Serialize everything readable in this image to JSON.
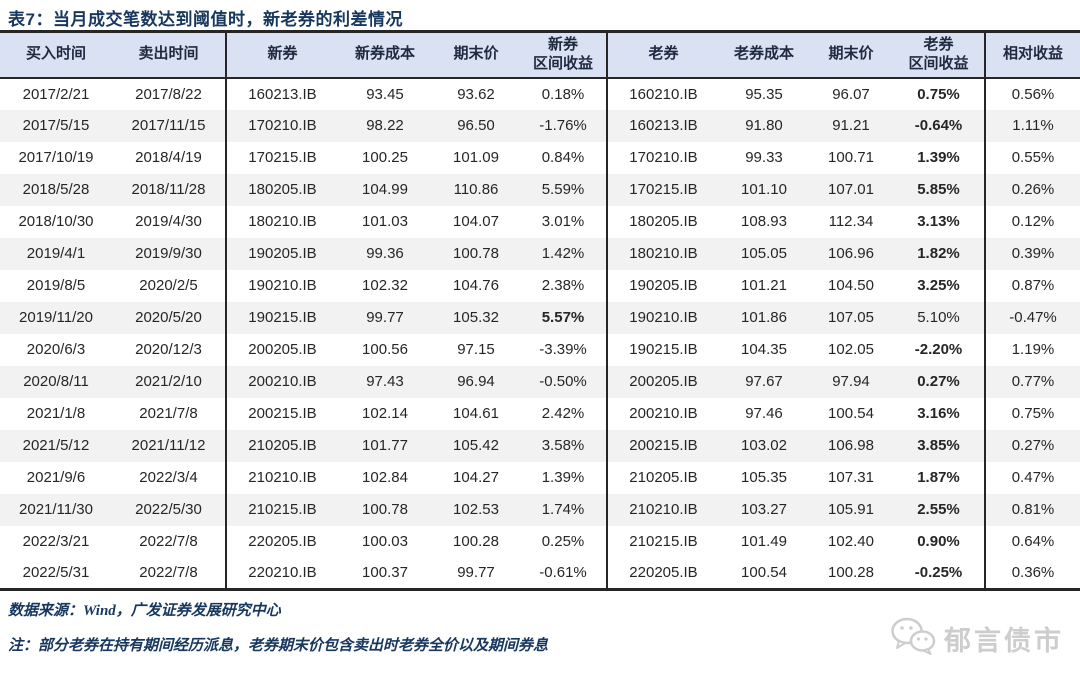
{
  "title": "表7：当月成交笔数达到阈值时，新老券的利差情况",
  "colors": {
    "title_navy": "#17375e",
    "header_bg": "#d9e1f2",
    "stripe_gray": "#f2f2f2",
    "border_dark": "#262626",
    "watermark_gray": "#cdcdcd"
  },
  "table": {
    "headers": [
      {
        "lines": [
          "买入时间"
        ]
      },
      {
        "lines": [
          "卖出时间"
        ]
      },
      {
        "lines": [
          "新券"
        ]
      },
      {
        "lines": [
          "新券成本"
        ]
      },
      {
        "lines": [
          "期末价"
        ]
      },
      {
        "lines": [
          "新券",
          "区间收益"
        ]
      },
      {
        "lines": [
          "老券"
        ]
      },
      {
        "lines": [
          "老券成本"
        ]
      },
      {
        "lines": [
          "期末价"
        ]
      },
      {
        "lines": [
          "老券",
          "区间收益"
        ]
      },
      {
        "lines": [
          "相对收益"
        ]
      }
    ],
    "rows": [
      {
        "buy": "2017/2/21",
        "sell": "2017/8/22",
        "new_bond": "160213.IB",
        "new_cost": "93.45",
        "new_end": "93.62",
        "new_ret": "0.18%",
        "new_bold": false,
        "old_bond": "160210.IB",
        "old_cost": "95.35",
        "old_end": "96.07",
        "old_ret": "0.75%",
        "old_bold": true,
        "rel": "0.56%"
      },
      {
        "buy": "2017/5/15",
        "sell": "2017/11/15",
        "new_bond": "170210.IB",
        "new_cost": "98.22",
        "new_end": "96.50",
        "new_ret": "-1.76%",
        "new_bold": false,
        "old_bond": "160213.IB",
        "old_cost": "91.80",
        "old_end": "91.21",
        "old_ret": "-0.64%",
        "old_bold": true,
        "rel": "1.11%"
      },
      {
        "buy": "2017/10/19",
        "sell": "2018/4/19",
        "new_bond": "170215.IB",
        "new_cost": "100.25",
        "new_end": "101.09",
        "new_ret": "0.84%",
        "new_bold": false,
        "old_bond": "170210.IB",
        "old_cost": "99.33",
        "old_end": "100.71",
        "old_ret": "1.39%",
        "old_bold": true,
        "rel": "0.55%"
      },
      {
        "buy": "2018/5/28",
        "sell": "2018/11/28",
        "new_bond": "180205.IB",
        "new_cost": "104.99",
        "new_end": "110.86",
        "new_ret": "5.59%",
        "new_bold": false,
        "old_bond": "170215.IB",
        "old_cost": "101.10",
        "old_end": "107.01",
        "old_ret": "5.85%",
        "old_bold": true,
        "rel": "0.26%"
      },
      {
        "buy": "2018/10/30",
        "sell": "2019/4/30",
        "new_bond": "180210.IB",
        "new_cost": "101.03",
        "new_end": "104.07",
        "new_ret": "3.01%",
        "new_bold": false,
        "old_bond": "180205.IB",
        "old_cost": "108.93",
        "old_end": "112.34",
        "old_ret": "3.13%",
        "old_bold": true,
        "rel": "0.12%"
      },
      {
        "buy": "2019/4/1",
        "sell": "2019/9/30",
        "new_bond": "190205.IB",
        "new_cost": "99.36",
        "new_end": "100.78",
        "new_ret": "1.42%",
        "new_bold": false,
        "old_bond": "180210.IB",
        "old_cost": "105.05",
        "old_end": "106.96",
        "old_ret": "1.82%",
        "old_bold": true,
        "rel": "0.39%"
      },
      {
        "buy": "2019/8/5",
        "sell": "2020/2/5",
        "new_bond": "190210.IB",
        "new_cost": "102.32",
        "new_end": "104.76",
        "new_ret": "2.38%",
        "new_bold": false,
        "old_bond": "190205.IB",
        "old_cost": "101.21",
        "old_end": "104.50",
        "old_ret": "3.25%",
        "old_bold": true,
        "rel": "0.87%"
      },
      {
        "buy": "2019/11/20",
        "sell": "2020/5/20",
        "new_bond": "190215.IB",
        "new_cost": "99.77",
        "new_end": "105.32",
        "new_ret": "5.57%",
        "new_bold": true,
        "old_bond": "190210.IB",
        "old_cost": "101.86",
        "old_end": "107.05",
        "old_ret": "5.10%",
        "old_bold": false,
        "rel": "-0.47%"
      },
      {
        "buy": "2020/6/3",
        "sell": "2020/12/3",
        "new_bond": "200205.IB",
        "new_cost": "100.56",
        "new_end": "97.15",
        "new_ret": "-3.39%",
        "new_bold": false,
        "old_bond": "190215.IB",
        "old_cost": "104.35",
        "old_end": "102.05",
        "old_ret": "-2.20%",
        "old_bold": true,
        "rel": "1.19%"
      },
      {
        "buy": "2020/8/11",
        "sell": "2021/2/10",
        "new_bond": "200210.IB",
        "new_cost": "97.43",
        "new_end": "96.94",
        "new_ret": "-0.50%",
        "new_bold": false,
        "old_bond": "200205.IB",
        "old_cost": "97.67",
        "old_end": "97.94",
        "old_ret": "0.27%",
        "old_bold": true,
        "rel": "0.77%"
      },
      {
        "buy": "2021/1/8",
        "sell": "2021/7/8",
        "new_bond": "200215.IB",
        "new_cost": "102.14",
        "new_end": "104.61",
        "new_ret": "2.42%",
        "new_bold": false,
        "old_bond": "200210.IB",
        "old_cost": "97.46",
        "old_end": "100.54",
        "old_ret": "3.16%",
        "old_bold": true,
        "rel": "0.75%"
      },
      {
        "buy": "2021/5/12",
        "sell": "2021/11/12",
        "new_bond": "210205.IB",
        "new_cost": "101.77",
        "new_end": "105.42",
        "new_ret": "3.58%",
        "new_bold": false,
        "old_bond": "200215.IB",
        "old_cost": "103.02",
        "old_end": "106.98",
        "old_ret": "3.85%",
        "old_bold": true,
        "rel": "0.27%"
      },
      {
        "buy": "2021/9/6",
        "sell": "2022/3/4",
        "new_bond": "210210.IB",
        "new_cost": "102.84",
        "new_end": "104.27",
        "new_ret": "1.39%",
        "new_bold": false,
        "old_bond": "210205.IB",
        "old_cost": "105.35",
        "old_end": "107.31",
        "old_ret": "1.87%",
        "old_bold": true,
        "rel": "0.47%"
      },
      {
        "buy": "2021/11/30",
        "sell": "2022/5/30",
        "new_bond": "210215.IB",
        "new_cost": "100.78",
        "new_end": "102.53",
        "new_ret": "1.74%",
        "new_bold": false,
        "old_bond": "210210.IB",
        "old_cost": "103.27",
        "old_end": "105.91",
        "old_ret": "2.55%",
        "old_bold": true,
        "rel": "0.81%"
      },
      {
        "buy": "2022/3/21",
        "sell": "2022/7/8",
        "new_bond": "220205.IB",
        "new_cost": "100.03",
        "new_end": "100.28",
        "new_ret": "0.25%",
        "new_bold": false,
        "old_bond": "210215.IB",
        "old_cost": "101.49",
        "old_end": "102.40",
        "old_ret": "0.90%",
        "old_bold": true,
        "rel": "0.64%"
      },
      {
        "buy": "2022/5/31",
        "sell": "2022/7/8",
        "new_bond": "220210.IB",
        "new_cost": "100.37",
        "new_end": "99.77",
        "new_ret": "-0.61%",
        "new_bold": false,
        "old_bond": "220205.IB",
        "old_cost": "100.54",
        "old_end": "100.28",
        "old_ret": "-0.25%",
        "old_bold": true,
        "rel": "0.36%"
      }
    ]
  },
  "footer": {
    "source": "数据来源：Wind，广发证券发展研究中心",
    "note": "注：部分老券在持有期间经历派息，老券期末价包含卖出时老券全价以及期间券息"
  },
  "watermark": {
    "label": "郁言债市",
    "icon": "wechat-icon"
  }
}
